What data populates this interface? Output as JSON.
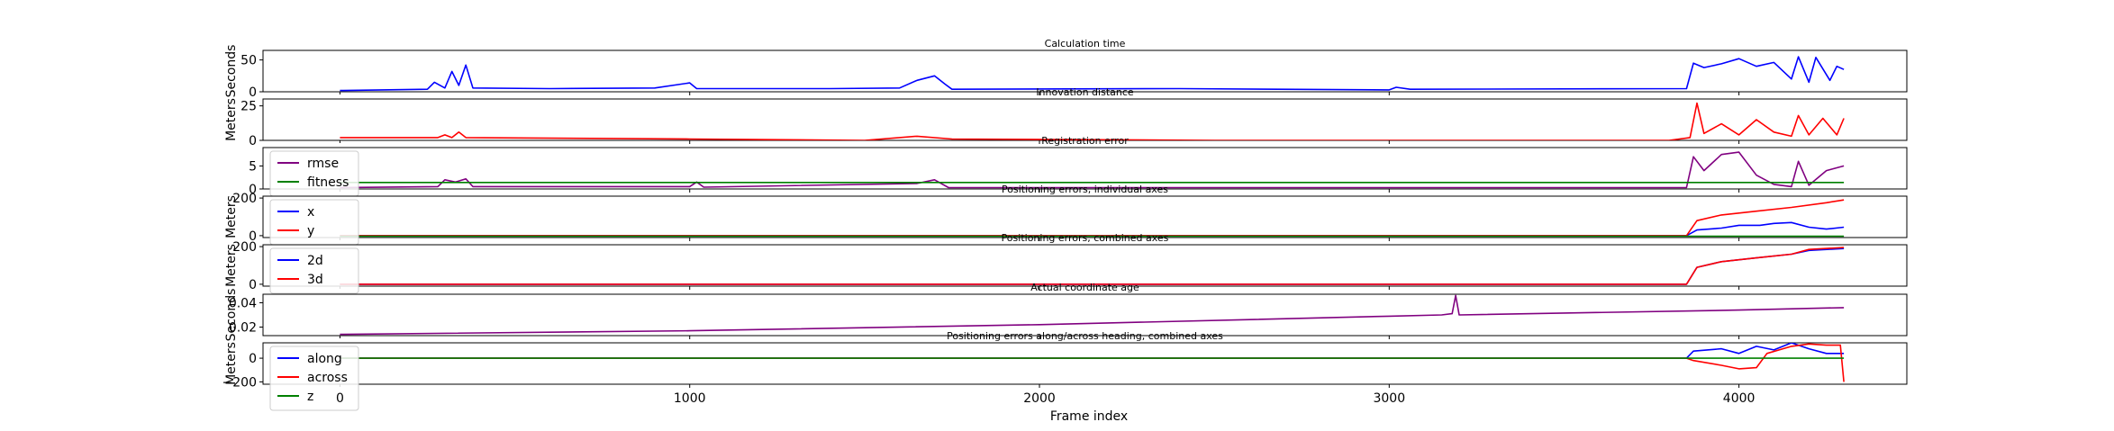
{
  "figure": {
    "xlabel": "Frame index",
    "xlim": [
      -220,
      4480
    ],
    "xticks": [
      1000,
      2000,
      3000,
      4000
    ],
    "xtick_labels": [
      "1000",
      "2000",
      "3000",
      "4000"
    ],
    "stray_tick_label": "0"
  },
  "chart_data": [
    {
      "type": "line",
      "title": "Calculation time",
      "ylabel": "Seconds",
      "ylim": [
        0,
        65
      ],
      "yticks": [
        0,
        50
      ],
      "ytick_labels": [
        "0",
        "50"
      ],
      "legend": null,
      "series": [
        {
          "name": "",
          "color": "#0000ff",
          "points": [
            [
              0,
              2
            ],
            [
              250,
              4
            ],
            [
              270,
              15
            ],
            [
              300,
              6
            ],
            [
              320,
              32
            ],
            [
              340,
              10
            ],
            [
              360,
              42
            ],
            [
              380,
              6
            ],
            [
              600,
              5
            ],
            [
              900,
              6
            ],
            [
              1000,
              14
            ],
            [
              1020,
              5
            ],
            [
              1400,
              5
            ],
            [
              1600,
              6
            ],
            [
              1650,
              18
            ],
            [
              1700,
              25
            ],
            [
              1730,
              12
            ],
            [
              1750,
              4
            ],
            [
              2400,
              5
            ],
            [
              3000,
              3
            ],
            [
              3020,
              7
            ],
            [
              3060,
              4
            ],
            [
              3850,
              5
            ],
            [
              3870,
              45
            ],
            [
              3900,
              38
            ],
            [
              3950,
              44
            ],
            [
              4000,
              52
            ],
            [
              4050,
              40
            ],
            [
              4100,
              46
            ],
            [
              4150,
              20
            ],
            [
              4170,
              55
            ],
            [
              4200,
              15
            ],
            [
              4220,
              54
            ],
            [
              4260,
              18
            ],
            [
              4280,
              40
            ],
            [
              4300,
              35
            ]
          ]
        }
      ]
    },
    {
      "type": "line",
      "title": "Innovation distance",
      "ylabel": "Meters",
      "ylim": [
        0,
        30
      ],
      "yticks": [
        0,
        25
      ],
      "ytick_labels": [
        "0",
        "25"
      ],
      "legend": null,
      "series": [
        {
          "name": "",
          "color": "#ff0000",
          "points": [
            [
              0,
              2
            ],
            [
              280,
              2
            ],
            [
              300,
              4
            ],
            [
              320,
              2
            ],
            [
              340,
              6
            ],
            [
              360,
              2
            ],
            [
              1000,
              1
            ],
            [
              1500,
              0
            ],
            [
              1650,
              3
            ],
            [
              1750,
              1
            ],
            [
              2500,
              0
            ],
            [
              3800,
              0
            ],
            [
              3860,
              2
            ],
            [
              3880,
              27
            ],
            [
              3900,
              5
            ],
            [
              3950,
              12
            ],
            [
              4000,
              4
            ],
            [
              4050,
              15
            ],
            [
              4100,
              6
            ],
            [
              4150,
              3
            ],
            [
              4170,
              18
            ],
            [
              4200,
              4
            ],
            [
              4240,
              16
            ],
            [
              4280,
              4
            ],
            [
              4300,
              16
            ]
          ]
        }
      ]
    },
    {
      "type": "line",
      "title": "Registration error",
      "ylabel": "",
      "ylim": [
        0,
        9
      ],
      "yticks": [
        0,
        5
      ],
      "ytick_labels": [
        "0",
        "5"
      ],
      "legend": "upper left",
      "series": [
        {
          "name": "rmse",
          "color": "#800080",
          "points": [
            [
              0,
              0.3
            ],
            [
              280,
              0.5
            ],
            [
              300,
              2
            ],
            [
              330,
              1.5
            ],
            [
              360,
              2.2
            ],
            [
              380,
              0.5
            ],
            [
              1000,
              0.5
            ],
            [
              1020,
              1.5
            ],
            [
              1040,
              0.4
            ],
            [
              1650,
              1.2
            ],
            [
              1700,
              2
            ],
            [
              1740,
              0.3
            ],
            [
              3850,
              0.3
            ],
            [
              3870,
              7
            ],
            [
              3900,
              4
            ],
            [
              3950,
              7.5
            ],
            [
              4000,
              8
            ],
            [
              4050,
              3
            ],
            [
              4100,
              1
            ],
            [
              4150,
              0.5
            ],
            [
              4170,
              6
            ],
            [
              4200,
              0.8
            ],
            [
              4250,
              4
            ],
            [
              4300,
              5
            ]
          ]
        },
        {
          "name": "fitness",
          "color": "#008000",
          "points": [
            [
              0,
              1.4
            ],
            [
              4300,
              1.4
            ]
          ]
        }
      ]
    },
    {
      "type": "line",
      "title": "Positioning errors, individual axes",
      "ylabel": "Meters",
      "ylim": [
        -10,
        210
      ],
      "yticks": [
        0,
        200
      ],
      "ytick_labels": [
        "0",
        "200"
      ],
      "legend": "upper left",
      "series": [
        {
          "name": "x",
          "color": "#0000ff",
          "points": [
            [
              0,
              0
            ],
            [
              3850,
              0
            ],
            [
              3880,
              30
            ],
            [
              3950,
              40
            ],
            [
              4000,
              55
            ],
            [
              4060,
              55
            ],
            [
              4100,
              65
            ],
            [
              4150,
              70
            ],
            [
              4200,
              45
            ],
            [
              4250,
              35
            ],
            [
              4300,
              45
            ]
          ]
        },
        {
          "name": "y",
          "color": "#ff0000",
          "points": [
            [
              0,
              0
            ],
            [
              3850,
              0
            ],
            [
              3880,
              80
            ],
            [
              3950,
              110
            ],
            [
              4050,
              130
            ],
            [
              4150,
              150
            ],
            [
              4250,
              175
            ],
            [
              4300,
              190
            ]
          ]
        },
        {
          "name": "",
          "color": "#008000",
          "points": [
            [
              0,
              -3
            ],
            [
              4300,
              -3
            ]
          ]
        }
      ]
    },
    {
      "type": "line",
      "title": "Positioning errors, combined axes",
      "ylabel": "Meters",
      "ylim": [
        -10,
        210
      ],
      "yticks": [
        0,
        200
      ],
      "ytick_labels": [
        "0",
        "200"
      ],
      "legend": "upper left",
      "series": [
        {
          "name": "2d",
          "color": "#0000ff",
          "points": [
            [
              0,
              0
            ],
            [
              3850,
              0
            ],
            [
              3880,
              90
            ],
            [
              3950,
              120
            ],
            [
              4050,
              140
            ],
            [
              4150,
              160
            ],
            [
              4200,
              180
            ],
            [
              4300,
              190
            ]
          ]
        },
        {
          "name": "3d",
          "color": "#ff0000",
          "points": [
            [
              0,
              0
            ],
            [
              3850,
              0
            ],
            [
              3880,
              90
            ],
            [
              3950,
              120
            ],
            [
              4050,
              140
            ],
            [
              4150,
              160
            ],
            [
              4200,
              185
            ],
            [
              4300,
              195
            ]
          ]
        }
      ]
    },
    {
      "type": "line",
      "title": "Actual coordinate age",
      "ylabel": "Seconds",
      "ylim": [
        0.013,
        0.047
      ],
      "yticks": [
        0.02,
        0.04
      ],
      "ytick_labels": [
        "0.02",
        "0.04"
      ],
      "legend": null,
      "series": [
        {
          "name": "",
          "color": "#800080",
          "points": [
            [
              0,
              0.014
            ],
            [
              1000,
              0.017
            ],
            [
              2000,
              0.022
            ],
            [
              3000,
              0.029
            ],
            [
              3150,
              0.03
            ],
            [
              3180,
              0.031
            ],
            [
              3190,
              0.046
            ],
            [
              3200,
              0.03
            ],
            [
              4000,
              0.034
            ],
            [
              4300,
              0.036
            ]
          ]
        }
      ]
    },
    {
      "type": "line",
      "title": "Positioning errors along/across heading, combined axes",
      "ylabel": "Meters",
      "ylim": [
        -220,
        130
      ],
      "yticks": [
        -200,
        0
      ],
      "ytick_labels": [
        "−200",
        "0"
      ],
      "legend": "upper left",
      "series": [
        {
          "name": "along",
          "color": "#0000ff",
          "points": [
            [
              0,
              0
            ],
            [
              3850,
              0
            ],
            [
              3870,
              60
            ],
            [
              3950,
              80
            ],
            [
              4000,
              40
            ],
            [
              4050,
              100
            ],
            [
              4100,
              70
            ],
            [
              4150,
              130
            ],
            [
              4200,
              80
            ],
            [
              4250,
              40
            ],
            [
              4300,
              40
            ]
          ]
        },
        {
          "name": "across",
          "color": "#ff0000",
          "points": [
            [
              0,
              0
            ],
            [
              3850,
              0
            ],
            [
              3870,
              -20
            ],
            [
              3950,
              -60
            ],
            [
              4000,
              -90
            ],
            [
              4050,
              -80
            ],
            [
              4080,
              40
            ],
            [
              4150,
              100
            ],
            [
              4200,
              120
            ],
            [
              4250,
              110
            ],
            [
              4290,
              110
            ],
            [
              4300,
              -200
            ]
          ]
        },
        {
          "name": "z",
          "color": "#008000",
          "points": [
            [
              0,
              0
            ],
            [
              4300,
              0
            ]
          ]
        }
      ]
    }
  ]
}
